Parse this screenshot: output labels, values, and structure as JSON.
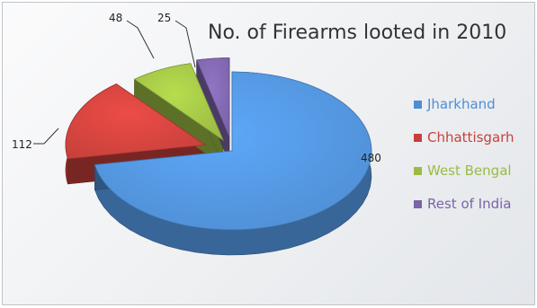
{
  "chart_data": {
    "type": "pie",
    "title": "No. of Firearms looted in 2010",
    "categories": [
      "Jharkhand",
      "Chhattisgarh",
      "West Bengal",
      "Rest of India"
    ],
    "values": [
      480,
      112,
      48,
      25
    ],
    "colors": [
      "#4f8ed3",
      "#c8403b",
      "#9bbb43",
      "#7b63a8"
    ],
    "legend_position": "right",
    "exploded": true,
    "three_d": true
  }
}
